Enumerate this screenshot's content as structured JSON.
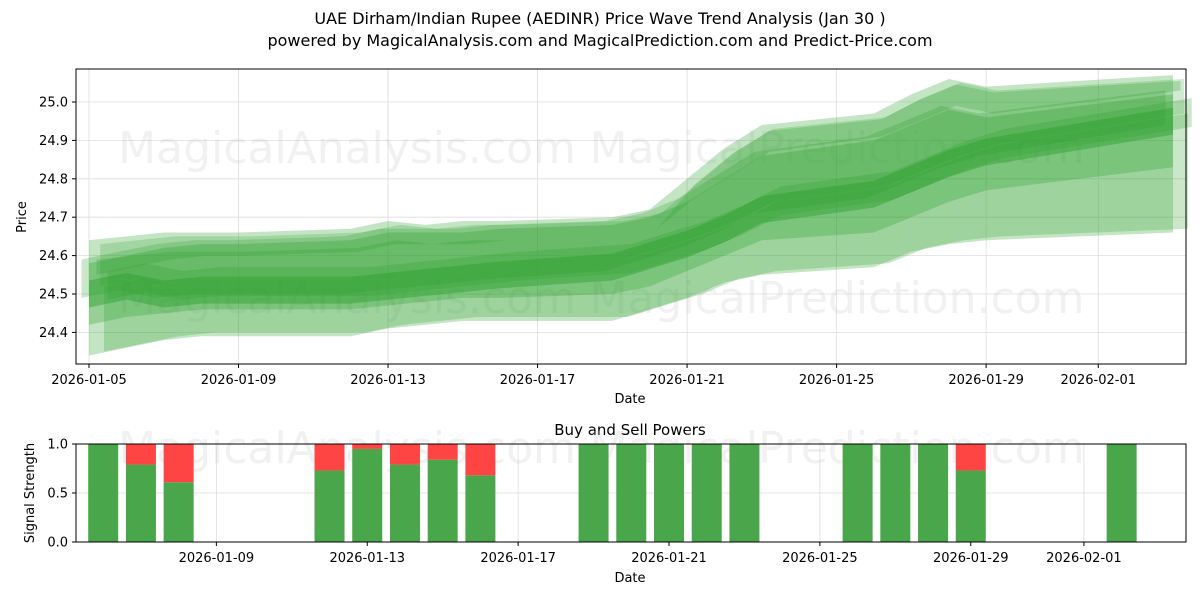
{
  "header": {
    "title": "UAE Dirham/Indian Rupee (AEDINR) Price Wave Trend Analysis (Jan 30 )",
    "subtitle": "powered by MagicalAnalysis.com and MagicalPrediction.com and Predict-Price.com"
  },
  "watermarks": [
    "MagicalAnalysis.com",
    "MagicalPrediction.com"
  ],
  "colors": {
    "band": "#2ca02c",
    "buy": "#4aa64a",
    "sell": "#ff4444",
    "grid": "#dddddd"
  },
  "chart_data": [
    {
      "type": "area",
      "title": "UAE Dirham/Indian Rupee (AEDINR) Price Wave Trend Analysis (Jan 30 )",
      "xlabel": "Date",
      "ylabel": "Price",
      "ylim": [
        24.32,
        25.09
      ],
      "yticks": [
        "24.4",
        "24.5",
        "24.6",
        "24.7",
        "24.8",
        "24.9",
        "25.0"
      ],
      "xticks": [
        "2026-01-05",
        "2026-01-09",
        "2026-01-13",
        "2026-01-17",
        "2026-01-21",
        "2026-01-25",
        "2026-01-29",
        "2026-02-01"
      ],
      "grid": true,
      "x": [
        "2026-01-05",
        "2026-01-06",
        "2026-01-07",
        "2026-01-08",
        "2026-01-09",
        "2026-01-12",
        "2026-01-13",
        "2026-01-14",
        "2026-01-15",
        "2026-01-16",
        "2026-01-19",
        "2026-01-20",
        "2026-01-21",
        "2026-01-22",
        "2026-01-23",
        "2026-01-26",
        "2026-01-27",
        "2026-01-28",
        "2026-01-29",
        "2026-02-03"
      ],
      "series": [
        {
          "name": "wave-upper-outer",
          "values": [
            24.64,
            24.65,
            24.66,
            24.66,
            24.66,
            24.67,
            24.69,
            24.68,
            24.69,
            24.69,
            24.7,
            24.72,
            24.8,
            24.88,
            24.94,
            24.97,
            25.02,
            25.06,
            25.04,
            25.07
          ]
        },
        {
          "name": "wave-upper",
          "values": [
            24.58,
            24.6,
            24.62,
            24.63,
            24.63,
            24.64,
            24.66,
            24.66,
            24.66,
            24.67,
            24.68,
            24.7,
            24.74,
            24.8,
            24.86,
            24.9,
            24.94,
            24.98,
            24.96,
            25.02
          ]
        },
        {
          "name": "wave-center",
          "values": [
            24.5,
            24.52,
            24.5,
            24.51,
            24.51,
            24.51,
            24.52,
            24.53,
            24.54,
            24.55,
            24.57,
            24.6,
            24.63,
            24.67,
            24.72,
            24.76,
            24.8,
            24.84,
            24.87,
            24.95
          ]
        },
        {
          "name": "wave-lower",
          "values": [
            24.42,
            24.44,
            24.45,
            24.46,
            24.46,
            24.46,
            24.47,
            24.48,
            24.49,
            24.49,
            24.5,
            24.52,
            24.56,
            24.6,
            24.64,
            24.66,
            24.7,
            24.74,
            24.77,
            24.83
          ]
        },
        {
          "name": "wave-lower-outer",
          "values": [
            24.34,
            24.36,
            24.38,
            24.39,
            24.39,
            24.39,
            24.41,
            24.42,
            24.43,
            24.43,
            24.43,
            24.46,
            24.49,
            24.53,
            24.55,
            24.57,
            24.61,
            24.63,
            24.64,
            24.66
          ]
        }
      ]
    },
    {
      "type": "bar",
      "title": "Buy and Sell Powers",
      "xlabel": "Date",
      "ylabel": "Signal Strength",
      "ylim": [
        0,
        1.0
      ],
      "yticks": [
        "0.0",
        "0.5",
        "1.0"
      ],
      "xticks": [
        "2026-01-09",
        "2026-01-13",
        "2026-01-17",
        "2026-01-21",
        "2026-01-25",
        "2026-01-29",
        "2026-02-01"
      ],
      "categories": [
        "2026-01-06",
        "2026-01-07",
        "2026-01-08",
        "2026-01-12",
        "2026-01-13",
        "2026-01-14",
        "2026-01-15",
        "2026-01-16",
        "2026-01-19",
        "2026-01-20",
        "2026-01-21",
        "2026-01-22",
        "2026-01-23",
        "2026-01-26",
        "2026-01-27",
        "2026-01-28",
        "2026-01-29",
        "2026-02-02"
      ],
      "series": [
        {
          "name": "Buy",
          "values": [
            1.0,
            0.79,
            0.61,
            0.73,
            0.95,
            0.79,
            0.84,
            0.68,
            1.0,
            1.0,
            1.0,
            1.0,
            1.0,
            1.0,
            1.0,
            1.0,
            0.73,
            1.0
          ]
        },
        {
          "name": "Sell",
          "values": [
            0.0,
            0.21,
            0.39,
            0.27,
            0.05,
            0.21,
            0.16,
            0.32,
            0.0,
            0.0,
            0.0,
            0.0,
            0.0,
            0.0,
            0.0,
            0.0,
            0.27,
            0.0
          ]
        }
      ]
    }
  ]
}
